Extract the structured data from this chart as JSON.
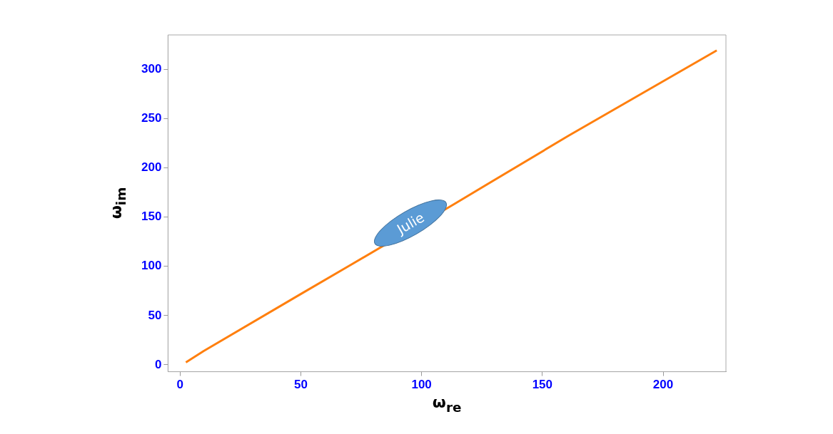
{
  "chart_data": {
    "type": "line",
    "xlabel": "ω$_{re}$",
    "ylabel": "ω$_{im}$",
    "x": [
      2.4,
      9.8,
      49.7,
      70,
      113.3,
      160.8,
      222.2
    ],
    "series": [
      {
        "color": "#ff7f0e",
        "values": [
          2.5,
          14,
          71.5,
          100.5,
          163,
          232.6,
          319.3
        ]
      }
    ],
    "xlim": [
      -5,
      226
    ],
    "ylim": [
      -7,
      335
    ],
    "xticks": [
      0,
      50,
      100,
      150,
      200
    ],
    "yticks": [
      0,
      50,
      100,
      150,
      200,
      250,
      300
    ],
    "grid": false,
    "legend": false,
    "marker": "none",
    "line_style": "solid",
    "annotations": [
      "Julie"
    ]
  }
}
